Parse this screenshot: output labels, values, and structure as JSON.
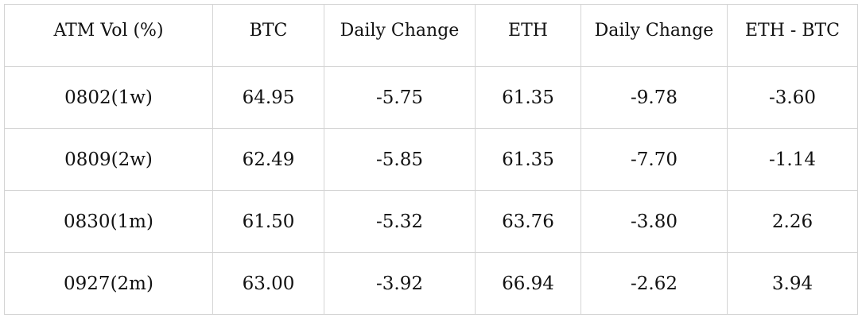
{
  "table": {
    "header": [
      "ATM Vol (%)",
      "BTC",
      "Daily Change",
      "ETH",
      "Daily Change",
      "ETH - BTC"
    ],
    "rows": [
      [
        "0802(1w)",
        "64.95",
        "-5.75",
        "61.35",
        "-9.78",
        "-3.60"
      ],
      [
        "0809(2w)",
        "62.49",
        "-5.85",
        "61.35",
        "-7.70",
        "-1.14"
      ],
      [
        "0830(1m)",
        "61.50",
        "-5.32",
        "63.76",
        "-3.80",
        "2.26"
      ],
      [
        "0927(2m)",
        "63.00",
        "-3.92",
        "66.94",
        "-2.62",
        "3.94"
      ]
    ]
  }
}
